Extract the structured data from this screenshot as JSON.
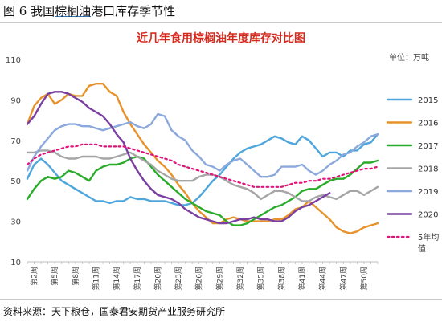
{
  "figure_caption": {
    "prefix": "图 6 我国",
    "highlight": "棕榈油",
    "suffix": "港口库存季节性"
  },
  "source_text": "资料来源：天下粮仓，国泰君安期货产业服务研究所",
  "unit_text": "单位：万吨",
  "chart_data": {
    "type": "line",
    "title": "近几年食用棕榈油年度库存对比图",
    "xlabel": "",
    "ylabel": "",
    "unit": "单位：万吨",
    "ylim": [
      10,
      110
    ],
    "yticks": [
      10,
      30,
      50,
      70,
      90,
      110
    ],
    "xlim": [
      1,
      52
    ],
    "x_tick_labels": [
      {
        "x": 2,
        "label": "第2周"
      },
      {
        "x": 5,
        "label": "第5周"
      },
      {
        "x": 8,
        "label": "第8周"
      },
      {
        "x": 11,
        "label": "第11周"
      },
      {
        "x": 14,
        "label": "第14周"
      },
      {
        "x": 17,
        "label": "第17周"
      },
      {
        "x": 20,
        "label": "第20周"
      },
      {
        "x": 23,
        "label": "第23周"
      },
      {
        "x": 26,
        "label": "第26周"
      },
      {
        "x": 29,
        "label": "第29周"
      },
      {
        "x": 32,
        "label": "第32周"
      },
      {
        "x": 35,
        "label": "第35周"
      },
      {
        "x": 38,
        "label": "第38周"
      },
      {
        "x": 41,
        "label": "第41周"
      },
      {
        "x": 44,
        "label": "第44周"
      },
      {
        "x": 47,
        "label": "第47周"
      },
      {
        "x": 50,
        "label": "第50周"
      }
    ],
    "grid": false,
    "legend_position": "right",
    "series": [
      {
        "name": "2015",
        "color": "#4ea6dc",
        "dash": false,
        "x_start": 1,
        "values": [
          51,
          58,
          61,
          58,
          54,
          50,
          48,
          46,
          44,
          42,
          40,
          40,
          39,
          40,
          40,
          42,
          41,
          41,
          40,
          40,
          40,
          39,
          38,
          38,
          39,
          42,
          46,
          50,
          53,
          57,
          61,
          64,
          66,
          67,
          68,
          70,
          72,
          71,
          69,
          68,
          72,
          70,
          66,
          62,
          64,
          64,
          62,
          65,
          65,
          68,
          69,
          73
        ]
      },
      {
        "name": "2016",
        "color": "#e8932a",
        "dash": false,
        "x_start": 1,
        "values": [
          78,
          87,
          91,
          93,
          88,
          90,
          93,
          92,
          92,
          97,
          98,
          98,
          94,
          92,
          84,
          78,
          73,
          68,
          64,
          60,
          57,
          53,
          48,
          44,
          39,
          35,
          32,
          29,
          29,
          31,
          32,
          31,
          30,
          30,
          30,
          30,
          31,
          31,
          33,
          36,
          37,
          40,
          37,
          34,
          31,
          27,
          25,
          24,
          25,
          27,
          28,
          29
        ]
      },
      {
        "name": "2017",
        "color": "#2bab2b",
        "dash": false,
        "x_start": 1,
        "values": [
          41,
          46,
          50,
          52,
          51,
          52,
          55,
          54,
          52,
          50,
          55,
          57,
          58,
          58,
          59,
          61,
          62,
          61,
          57,
          53,
          50,
          47,
          44,
          41,
          39,
          37,
          35,
          34,
          33,
          30,
          28,
          28,
          29,
          31,
          33,
          35,
          37,
          38,
          40,
          42,
          45,
          46,
          46,
          48,
          50,
          51,
          51,
          53,
          56,
          59,
          59,
          60
        ]
      },
      {
        "name": "2018",
        "color": "#a6a6a6",
        "dash": false,
        "x_start": 1,
        "values": [
          64,
          64,
          65,
          65,
          64,
          62,
          61,
          61,
          62,
          62,
          62,
          61,
          61,
          62,
          63,
          64,
          62,
          60,
          58,
          55,
          53,
          51,
          50,
          50,
          50,
          52,
          53,
          53,
          52,
          50,
          48,
          47,
          46,
          44,
          41,
          43,
          45,
          45,
          44,
          42,
          40,
          40,
          42,
          43,
          42,
          41,
          43,
          45,
          45,
          43,
          45,
          47
        ]
      },
      {
        "name": "2019",
        "color": "#8ba9dc",
        "dash": false,
        "x_start": 1,
        "values": [
          55,
          62,
          67,
          71,
          75,
          77,
          78,
          78,
          77,
          77,
          76,
          75,
          76,
          77,
          78,
          79,
          77,
          76,
          78,
          83,
          82,
          75,
          72,
          70,
          65,
          62,
          58,
          57,
          55,
          58,
          60,
          61,
          58,
          55,
          52,
          52,
          53,
          57,
          57,
          57,
          58,
          55,
          53,
          55,
          58,
          60,
          63,
          64,
          67,
          69,
          72,
          73
        ]
      },
      {
        "name": "2020",
        "color": "#7a3fa0",
        "dash": false,
        "x_start": 1,
        "values": [
          78,
          82,
          88,
          93,
          94,
          94,
          93,
          91,
          89,
          86,
          84,
          82,
          78,
          73,
          69,
          61,
          55,
          50,
          46,
          43,
          42,
          41,
          39,
          36,
          34,
          32,
          31,
          30,
          29,
          29,
          30,
          31,
          31,
          32,
          31,
          31,
          30,
          30,
          32,
          35,
          37,
          38,
          40,
          42,
          44
        ]
      },
      {
        "name": "5年均值",
        "color": "#e0127a",
        "dash": true,
        "x_start": 1,
        "values": [
          58,
          61,
          63,
          64,
          65,
          66,
          67,
          67,
          68,
          68,
          68,
          67,
          67,
          67,
          67,
          66,
          65,
          64,
          63,
          62,
          61,
          60,
          58,
          57,
          56,
          55,
          54,
          53,
          52,
          51,
          50,
          49,
          48,
          47,
          47,
          47,
          47,
          47,
          48,
          49,
          49,
          50,
          50,
          51,
          51,
          52,
          53,
          54,
          55,
          56,
          56,
          57
        ]
      }
    ]
  },
  "legend": [
    {
      "label": "2015",
      "color": "#4ea6dc",
      "dash": false
    },
    {
      "label": "2016",
      "color": "#e8932a",
      "dash": false
    },
    {
      "label": "2017",
      "color": "#2bab2b",
      "dash": false
    },
    {
      "label": "2018",
      "color": "#a6a6a6",
      "dash": false
    },
    {
      "label": "2019",
      "color": "#8ba9dc",
      "dash": false
    },
    {
      "label": "2020",
      "color": "#7a3fa0",
      "dash": false
    },
    {
      "label": "5年均",
      "label2": "值",
      "color": "#e0127a",
      "dash": true
    }
  ]
}
